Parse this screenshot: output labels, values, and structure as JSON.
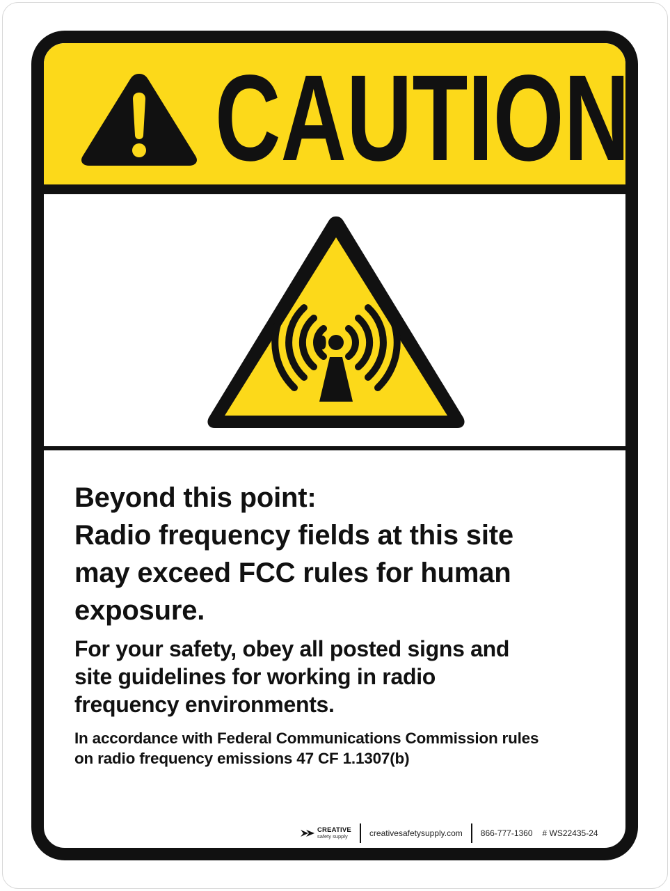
{
  "sign": {
    "header_word": "CAUTION",
    "headline_lines": [
      "Beyond this point:",
      "Radio frequency fields at this site",
      "may exceed FCC rules for human",
      "exposure."
    ],
    "instruction_lines": [
      "For your safety, obey all posted signs and",
      "site guidelines for working in radio",
      "frequency environments."
    ],
    "regulation_lines": [
      "In accordance with Federal Communications Commission rules",
      "on radio frequency emissions 47 CF 1.1307(b)"
    ]
  },
  "footer": {
    "brand_name": "CREATIVE",
    "brand_tagline": "safety supply",
    "website": "creativesafetysupply.com",
    "phone": "866-777-1360",
    "product_code": "# WS22435-24"
  },
  "colors": {
    "header_yellow": "#fcd91a",
    "symbol_yellow": "#fcd91a",
    "ink": "#111111"
  },
  "icons": {
    "header": "exclamation-triangle-icon",
    "symbol": "radio-frequency-radiation-warning-icon",
    "brand": "brand-logo-icon"
  }
}
